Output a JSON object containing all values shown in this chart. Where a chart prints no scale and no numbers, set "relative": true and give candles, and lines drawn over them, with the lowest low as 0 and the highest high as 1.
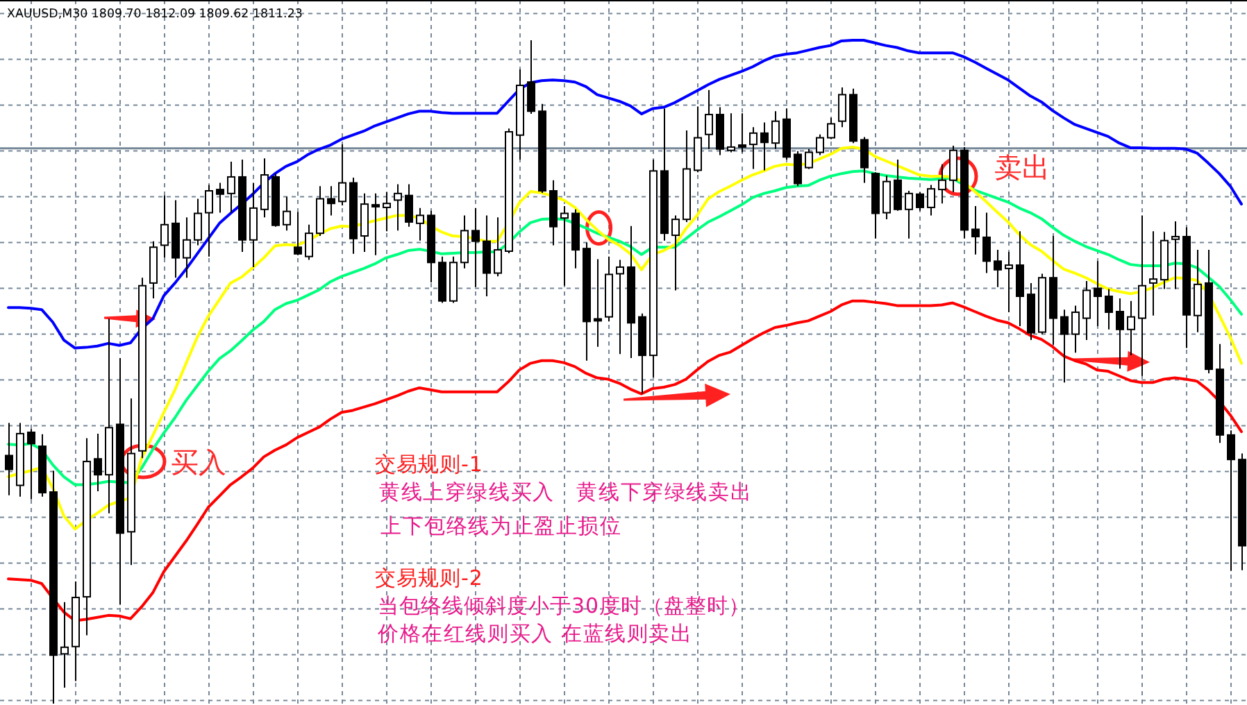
{
  "chart_data": {
    "type": "candlestick",
    "title": "XAUUSD,M30 1809.70 1812.09 1809.62 1811.23",
    "relative": true,
    "color": "#000000",
    "grid": true,
    "categories": [
      null,
      null,
      null,
      null,
      null,
      null,
      null,
      null,
      null,
      null,
      null,
      null,
      null,
      null,
      null,
      null,
      null,
      null,
      null,
      null,
      null,
      null,
      null,
      null,
      null,
      null,
      null,
      null,
      null,
      null,
      null,
      null,
      null,
      null,
      null,
      null,
      null,
      null,
      null,
      null,
      null,
      null,
      null,
      null,
      null,
      null,
      null,
      null,
      null,
      null,
      null,
      null,
      null,
      null,
      null,
      null,
      null,
      null,
      null,
      null,
      null,
      null,
      null,
      null,
      null,
      null,
      null,
      null,
      null,
      null,
      null,
      null,
      null,
      null,
      null,
      null,
      null,
      null,
      null,
      null,
      null,
      null,
      null,
      null,
      null,
      null,
      null,
      null,
      null,
      null,
      null,
      null,
      null,
      null,
      null,
      null,
      null,
      null,
      null,
      null,
      null,
      null,
      null,
      null,
      null,
      null,
      null,
      null,
      null,
      null,
      null,
      null
    ],
    "ohlc": [
      [
        0.374,
        0.423,
        0.314,
        0.353
      ],
      [
        0.329,
        0.423,
        0.312,
        0.407
      ],
      [
        0.409,
        0.414,
        0.308,
        0.392
      ],
      [
        0.388,
        0.406,
        0.312,
        0.318
      ],
      [
        0.319,
        0.351,
        0,
        0.073
      ],
      [
        0.075,
        0.153,
        0.024,
        0.085
      ],
      [
        0.086,
        0.184,
        0.034,
        0.16
      ],
      [
        0.161,
        0.4,
        0.103,
        0.365
      ],
      [
        0.369,
        0.407,
        0.32,
        0.345
      ],
      [
        0.345,
        0.58,
        0.287,
        0.416
      ],
      [
        0.421,
        0.521,
        0.149,
        0.257
      ],
      [
        0.259,
        0.46,
        0.209,
        0.377
      ],
      [
        0.381,
        0.642,
        0.37,
        0.63
      ],
      [
        0.634,
        0.697,
        0.611,
        0.688
      ],
      [
        0.691,
        0.766,
        0.672,
        0.722
      ],
      [
        0.724,
        0.759,
        0.642,
        0.672
      ],
      [
        0.672,
        0.733,
        0.642,
        0.699
      ],
      [
        0.699,
        0.761,
        0.691,
        0.739
      ],
      [
        0.74,
        0.782,
        0.674,
        0.773
      ],
      [
        0.775,
        0.785,
        0.74,
        0.768
      ],
      [
        0.769,
        0.817,
        0.74,
        0.794
      ],
      [
        0.794,
        0.82,
        0.681,
        0.699
      ],
      [
        0.699,
        0.785,
        0.658,
        0.747
      ],
      [
        0.745,
        0.822,
        0.733,
        0.797
      ],
      [
        0.794,
        0.799,
        0.719,
        0.721
      ],
      [
        0.722,
        0.764,
        0.713,
        0.742
      ],
      [
        0.688,
        0.741,
        0.676,
        0.678
      ],
      [
        0.674,
        0.722,
        0.669,
        0.709
      ],
      [
        0.709,
        0.78,
        0.705,
        0.761
      ],
      [
        0.761,
        0.78,
        0.736,
        0.754
      ],
      [
        0.757,
        0.843,
        0.751,
        0.785
      ],
      [
        0.785,
        0.793,
        0.678,
        0.701
      ],
      [
        0.705,
        0.769,
        0.681,
        0.753
      ],
      [
        0.752,
        0.769,
        0.676,
        0.749
      ],
      [
        0.748,
        0.771,
        0.712,
        0.754
      ],
      [
        0.759,
        0.783,
        0.713,
        0.769
      ],
      [
        0.766,
        0.783,
        0.719,
        0.726
      ],
      [
        0.724,
        0.747,
        0.698,
        0.736
      ],
      [
        0.736,
        0.743,
        0.635,
        0.665
      ],
      [
        0.665,
        0.674,
        0.604,
        0.607
      ],
      [
        0.607,
        0.674,
        0.604,
        0.665
      ],
      [
        0.665,
        0.736,
        0.656,
        0.713
      ],
      [
        0.713,
        0.747,
        0.628,
        0.697
      ],
      [
        0.697,
        0.736,
        0.614,
        0.649
      ],
      [
        0.649,
        0.733,
        0.644,
        0.684
      ],
      [
        0.682,
        0.867,
        0.679,
        0.862
      ],
      [
        0.857,
        0.956,
        0.82,
        0.932
      ],
      [
        0.937,
        1,
        0.889,
        0.893
      ],
      [
        0.893,
        0.904,
        0.77,
        0.773
      ],
      [
        0.773,
        0.789,
        0.691,
        0.719
      ],
      [
        0.732,
        0.75,
        0.63,
        0.739
      ],
      [
        0.739,
        0.745,
        0.656,
        0.684
      ],
      [
        0.686,
        0.695,
        0.517,
        0.576
      ],
      [
        0.58,
        0.67,
        0.538,
        0.577
      ],
      [
        0.583,
        0.674,
        0.576,
        0.647
      ],
      [
        0.648,
        0.669,
        0.527,
        0.658
      ],
      [
        0.658,
        0.72,
        0.521,
        0.574
      ],
      [
        0.583,
        0.588,
        0.467,
        0.525
      ],
      [
        0.525,
        0.82,
        0.492,
        0.803
      ],
      [
        0.803,
        0.897,
        0.698,
        0.709
      ],
      [
        0.706,
        0.736,
        0.623,
        0.73
      ],
      [
        0.73,
        0.864,
        0.726,
        0.806
      ],
      [
        0.804,
        0.9,
        0.801,
        0.853
      ],
      [
        0.858,
        0.925,
        0.836,
        0.888
      ],
      [
        0.888,
        0.899,
        0.827,
        0.836
      ],
      [
        0.834,
        0.89,
        0.831,
        0.839
      ],
      [
        0.842,
        0.89,
        0.831,
        0.839
      ],
      [
        0.843,
        0.869,
        0.806,
        0.86
      ],
      [
        0.86,
        0.876,
        0.804,
        0.846
      ],
      [
        0.845,
        0.893,
        0.836,
        0.878
      ],
      [
        0.881,
        0.897,
        0.82,
        0.824
      ],
      [
        0.828,
        0.833,
        0.78,
        0.784
      ],
      [
        0.808,
        0.836,
        0.806,
        0.831
      ],
      [
        0.831,
        0.858,
        0.827,
        0.853
      ],
      [
        0.853,
        0.883,
        0.851,
        0.874
      ],
      [
        0.878,
        0.929,
        0.869,
        0.918
      ],
      [
        0.918,
        0.927,
        0.845,
        0.848
      ],
      [
        0.85,
        0.854,
        0.785,
        0.808
      ],
      [
        0.799,
        0.801,
        0.701,
        0.739
      ],
      [
        0.74,
        0.796,
        0.73,
        0.787
      ],
      [
        0.789,
        0.82,
        0.743,
        0.745
      ],
      [
        0.745,
        0.773,
        0.701,
        0.769
      ],
      [
        0.768,
        0.771,
        0.743,
        0.748
      ],
      [
        0.748,
        0.782,
        0.736,
        0.776
      ],
      [
        0.775,
        0.813,
        0.754,
        0.789
      ],
      [
        0.789,
        0.841,
        0.771,
        0.834
      ],
      [
        0.834,
        0.839,
        0.701,
        0.714
      ],
      [
        0.715,
        0.75,
        0.677,
        0.704
      ],
      [
        0.703,
        0.74,
        0.649,
        0.667
      ],
      [
        0.667,
        0.684,
        0.628,
        0.654
      ],
      [
        0.656,
        0.681,
        0.59,
        0.661
      ],
      [
        0.661,
        0.712,
        0.569,
        0.614
      ],
      [
        0.617,
        0.634,
        0.548,
        0.559
      ],
      [
        0.56,
        0.648,
        0.557,
        0.642
      ],
      [
        0.642,
        0.705,
        0.541,
        0.581
      ],
      [
        0.583,
        0.594,
        0.484,
        0.557
      ],
      [
        0.557,
        0.6,
        0.529,
        0.59
      ],
      [
        0.581,
        0.637,
        0.548,
        0.623
      ],
      [
        0.626,
        0.667,
        0.569,
        0.614
      ],
      [
        0.614,
        0.625,
        0.564,
        0.59
      ],
      [
        0.591,
        0.611,
        0.505,
        0.564
      ],
      [
        0.564,
        0.607,
        0.525,
        0.583
      ],
      [
        0.581,
        0.736,
        0.494,
        0.63
      ],
      [
        0.634,
        0.712,
        0.585,
        0.64
      ],
      [
        0.639,
        0.711,
        0.625,
        0.698
      ],
      [
        0.7,
        0.727,
        0.625,
        0.704
      ],
      [
        0.704,
        0.718,
        0.536,
        0.586
      ],
      [
        0.585,
        0.684,
        0.56,
        0.632
      ],
      [
        0.634,
        0.684,
        0.498,
        0.504
      ],
      [
        0.504,
        0.542,
        0.393,
        0.405
      ],
      [
        0.405,
        0.412,
        0.2,
        0.368
      ],
      [
        0.368,
        0.377,
        0.201,
        0.238
      ]
    ],
    "series": [
      {
        "type": "line",
        "color": "#0000ff",
        "values": [
          0.597,
          0.597,
          0.596,
          0.594,
          0.575,
          0.548,
          0.536,
          0.537,
          0.539,
          0.543,
          0.54,
          0.544,
          0.565,
          0.58,
          0.615,
          0.634,
          0.655,
          0.678,
          0.701,
          0.724,
          0.739,
          0.753,
          0.768,
          0.785,
          0.799,
          0.81,
          0.817,
          0.828,
          0.836,
          0.842,
          0.851,
          0.857,
          0.863,
          0.871,
          0.877,
          0.883,
          0.889,
          0.893,
          0.893,
          0.891,
          0.89,
          0.89,
          0.89,
          0.89,
          0.89,
          0.908,
          0.926,
          0.936,
          0.939,
          0.94,
          0.939,
          0.937,
          0.93,
          0.918,
          0.913,
          0.908,
          0.901,
          0.889,
          0.897,
          0.899,
          0.906,
          0.915,
          0.924,
          0.933,
          0.941,
          0.947,
          0.953,
          0.96,
          0.969,
          0.976,
          0.979,
          0.981,
          0.985,
          0.989,
          0.992,
          0.999,
          1,
          1,
          0.996,
          0.992,
          0.989,
          0.984,
          0.981,
          0.981,
          0.981,
          0.981,
          0.975,
          0.967,
          0.958,
          0.949,
          0.94,
          0.928,
          0.916,
          0.907,
          0.894,
          0.883,
          0.873,
          0.867,
          0.861,
          0.855,
          0.845,
          0.838,
          0.838,
          0.837,
          0.837,
          0.837,
          0.836,
          0.83,
          0.815,
          0.799,
          0.78,
          0.753
        ]
      },
      {
        "type": "line",
        "color": "#ff0000",
        "values": [
          0.188,
          0.187,
          0.186,
          0.181,
          0.159,
          0.138,
          0.125,
          0.127,
          0.13,
          0.133,
          0.132,
          0.128,
          0.146,
          0.167,
          0.199,
          0.222,
          0.245,
          0.27,
          0.296,
          0.313,
          0.33,
          0.342,
          0.355,
          0.372,
          0.382,
          0.39,
          0.401,
          0.409,
          0.417,
          0.429,
          0.439,
          0.442,
          0.447,
          0.452,
          0.458,
          0.464,
          0.471,
          0.476,
          0.473,
          0.47,
          0.47,
          0.47,
          0.47,
          0.47,
          0.47,
          0.485,
          0.503,
          0.513,
          0.517,
          0.517,
          0.514,
          0.508,
          0.498,
          0.491,
          0.489,
          0.483,
          0.474,
          0.467,
          0.475,
          0.477,
          0.481,
          0.489,
          0.503,
          0.516,
          0.525,
          0.53,
          0.54,
          0.55,
          0.559,
          0.567,
          0.57,
          0.574,
          0.577,
          0.584,
          0.591,
          0.601,
          0.607,
          0.607,
          0.605,
          0.603,
          0.6,
          0.6,
          0.6,
          0.6,
          0.601,
          0.604,
          0.598,
          0.591,
          0.584,
          0.578,
          0.574,
          0.565,
          0.555,
          0.549,
          0.538,
          0.524,
          0.517,
          0.512,
          0.503,
          0.501,
          0.494,
          0.487,
          0.484,
          0.484,
          0.489,
          0.491,
          0.489,
          0.486,
          0.473,
          0.456,
          0.435,
          0.41
        ]
      },
      {
        "type": "line",
        "color": "#00ff7f",
        "values": [
          0.391,
          0.39,
          0.392,
          0.383,
          0.36,
          0.342,
          0.33,
          0.33,
          0.332,
          0.335,
          0.334,
          0.333,
          0.355,
          0.383,
          0.408,
          0.431,
          0.457,
          0.479,
          0.501,
          0.52,
          0.532,
          0.547,
          0.563,
          0.576,
          0.594,
          0.603,
          0.608,
          0.616,
          0.624,
          0.636,
          0.644,
          0.65,
          0.656,
          0.663,
          0.672,
          0.677,
          0.683,
          0.685,
          0.682,
          0.678,
          0.679,
          0.68,
          0.68,
          0.681,
          0.681,
          0.694,
          0.711,
          0.725,
          0.73,
          0.731,
          0.73,
          0.724,
          0.717,
          0.709,
          0.703,
          0.697,
          0.689,
          0.677,
          0.688,
          0.688,
          0.688,
          0.701,
          0.714,
          0.726,
          0.734,
          0.743,
          0.752,
          0.763,
          0.769,
          0.773,
          0.778,
          0.78,
          0.781,
          0.789,
          0.795,
          0.799,
          0.802,
          0.803,
          0.799,
          0.796,
          0.794,
          0.792,
          0.791,
          0.79,
          0.791,
          0.792,
          0.782,
          0.774,
          0.768,
          0.762,
          0.756,
          0.747,
          0.74,
          0.731,
          0.718,
          0.706,
          0.697,
          0.689,
          0.683,
          0.677,
          0.669,
          0.662,
          0.66,
          0.66,
          0.66,
          0.664,
          0.663,
          0.657,
          0.643,
          0.629,
          0.609,
          0.587
        ]
      },
      {
        "type": "line",
        "color": "#ffff00",
        "values": [
          0.342,
          0.347,
          0.351,
          0.356,
          0.325,
          0.283,
          0.263,
          0.276,
          0.287,
          0.299,
          0.305,
          0.31,
          0.37,
          0.404,
          0.439,
          0.473,
          0.513,
          0.552,
          0.584,
          0.609,
          0.634,
          0.643,
          0.657,
          0.672,
          0.69,
          0.692,
          0.691,
          0.698,
          0.708,
          0.716,
          0.72,
          0.719,
          0.724,
          0.728,
          0.732,
          0.736,
          0.736,
          0.732,
          0.72,
          0.711,
          0.705,
          0.704,
          0.701,
          0.697,
          0.697,
          0.724,
          0.755,
          0.772,
          0.77,
          0.765,
          0.759,
          0.748,
          0.73,
          0.714,
          0.7,
          0.691,
          0.678,
          0.654,
          0.677,
          0.683,
          0.692,
          0.716,
          0.736,
          0.761,
          0.772,
          0.78,
          0.789,
          0.797,
          0.803,
          0.81,
          0.813,
          0.812,
          0.814,
          0.821,
          0.828,
          0.837,
          0.839,
          0.836,
          0.825,
          0.818,
          0.811,
          0.804,
          0.797,
          0.795,
          0.795,
          0.794,
          0.786,
          0.772,
          0.757,
          0.741,
          0.726,
          0.707,
          0.692,
          0.682,
          0.668,
          0.655,
          0.649,
          0.642,
          0.633,
          0.625,
          0.621,
          0.618,
          0.621,
          0.627,
          0.635,
          0.642,
          0.641,
          0.638,
          0.619,
          0.586,
          0.552,
          0.513
        ]
      }
    ],
    "ref_lines": [
      {
        "axis": "y",
        "value": 0.837,
        "color": "#778899",
        "line_style": "solid"
      }
    ],
    "annotations": [
      "买入",
      "卖出",
      "交易规则-1",
      "黄线上穿绿线买入　黄线下穿绿线卖出",
      "上下包络线为止盈止损位",
      "交易规则-2",
      "当包络线倾斜度小于30度时（盘整时）",
      "价格在红线则买入 在蓝线则卖出"
    ]
  }
}
